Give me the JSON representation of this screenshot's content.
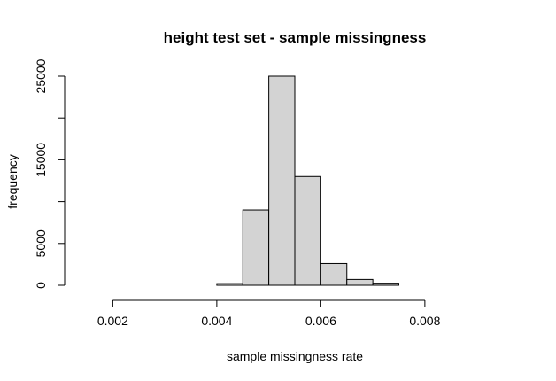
{
  "chart_data": {
    "type": "bar",
    "subtype": "histogram",
    "title": "height test set - sample missingness",
    "xlabel": "sample missingness rate",
    "ylabel": "frequency",
    "bar_fill": "#d3d3d3",
    "bar_stroke": "#000000",
    "bin_edges": [
      0.0015,
      0.002,
      0.0025,
      0.003,
      0.0035,
      0.004,
      0.0045,
      0.005,
      0.0055,
      0.006,
      0.0065,
      0.007,
      0.0075,
      0.008,
      0.0085,
      0.009,
      0.0095
    ],
    "values": [
      0,
      0,
      0,
      0,
      0,
      200,
      9000,
      25000,
      13000,
      2600,
      700,
      250,
      0,
      0,
      0,
      0
    ],
    "x_ticks": [
      0.002,
      0.004,
      0.006,
      0.008
    ],
    "x_tick_labels": [
      "0.002",
      "0.004",
      "0.006",
      "0.008"
    ],
    "y_ticks": [
      0,
      5000,
      15000,
      25000
    ],
    "y_tick_labels": [
      "0",
      "5000",
      "15000",
      "25000"
    ],
    "y_minor_ticks": [
      10000,
      20000
    ],
    "xlim": [
      0.0015,
      0.0095
    ],
    "ylim": [
      0,
      25000
    ],
    "grid": false,
    "legend": "none"
  }
}
